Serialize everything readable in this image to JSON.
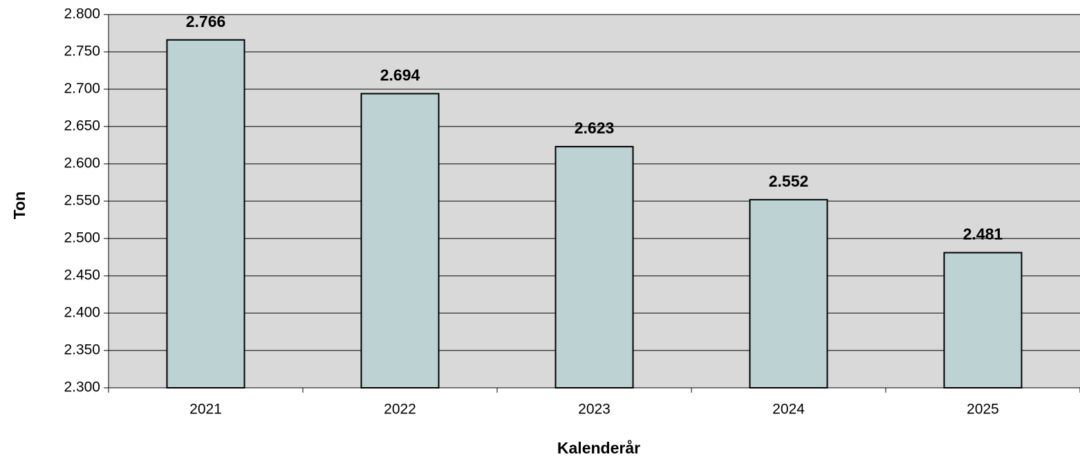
{
  "chart_data": {
    "type": "bar",
    "categories": [
      "2021",
      "2022",
      "2023",
      "2024",
      "2025"
    ],
    "values": [
      2766,
      2694,
      2623,
      2552,
      2481
    ],
    "value_labels": [
      "2.766",
      "2.694",
      "2.623",
      "2.552",
      "2.481"
    ],
    "color": "#bdd2d3",
    "x_label": "Kalenderår",
    "y_label": "Ton",
    "ylim": [
      2300,
      2800
    ],
    "yticks": [
      {
        "value": 2300,
        "label": "2.300"
      },
      {
        "value": 2350,
        "label": "2.350"
      },
      {
        "value": 2400,
        "label": "2.400"
      },
      {
        "value": 2450,
        "label": "2.450"
      },
      {
        "value": 2500,
        "label": "2.500"
      },
      {
        "value": 2550,
        "label": "2.550"
      },
      {
        "value": 2600,
        "label": "2.600"
      },
      {
        "value": 2650,
        "label": "2.650"
      },
      {
        "value": 2700,
        "label": "2.700"
      },
      {
        "value": 2750,
        "label": "2.750"
      },
      {
        "value": 2800,
        "label": "2.800"
      }
    ],
    "grid": true
  }
}
